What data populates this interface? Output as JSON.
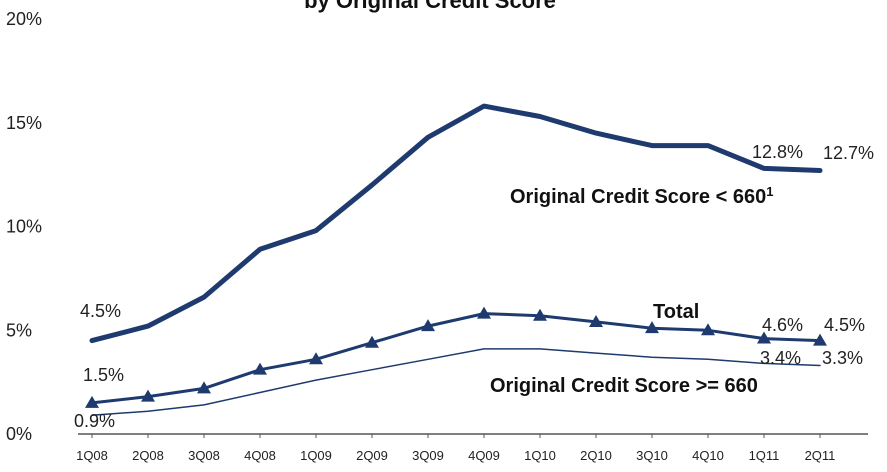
{
  "chart_data": {
    "type": "line",
    "title": "by Original Credit Score",
    "categories": [
      "1Q08",
      "2Q08",
      "3Q08",
      "4Q08",
      "1Q09",
      "2Q09",
      "3Q09",
      "4Q09",
      "1Q10",
      "2Q10",
      "3Q10",
      "4Q10",
      "1Q11",
      "2Q11"
    ],
    "ylim": [
      0,
      20
    ],
    "yticks": [
      "0%",
      "5%",
      "10%",
      "15%",
      "20%"
    ],
    "grid": false,
    "series": [
      {
        "name": "Original Credit Score < 660",
        "name_superscript": "1",
        "color": "#1f3a6e",
        "values": [
          4.5,
          5.2,
          6.6,
          8.9,
          9.8,
          12.0,
          14.3,
          15.8,
          15.3,
          14.5,
          13.9,
          13.9,
          12.8,
          12.7
        ],
        "labels": {
          "0": "4.5%",
          "12": "12.8%",
          "13": "12.7%"
        }
      },
      {
        "name": "Total",
        "color": "#1f3a6e",
        "marker": "triangle",
        "values": [
          1.5,
          1.8,
          2.2,
          3.1,
          3.6,
          4.4,
          5.2,
          5.8,
          5.7,
          5.4,
          5.1,
          5.0,
          4.6,
          4.5
        ],
        "labels": {
          "0": "1.5%",
          "12": "4.6%",
          "13": "4.5%"
        }
      },
      {
        "name": "Original Credit Score >= 660",
        "color": "#1f3a6e",
        "values": [
          0.9,
          1.1,
          1.4,
          2.0,
          2.6,
          3.1,
          3.6,
          4.1,
          4.1,
          3.9,
          3.7,
          3.6,
          3.4,
          3.3
        ],
        "labels": {
          "0": "0.9%",
          "12": "3.4%",
          "13": "3.3%"
        }
      }
    ]
  }
}
